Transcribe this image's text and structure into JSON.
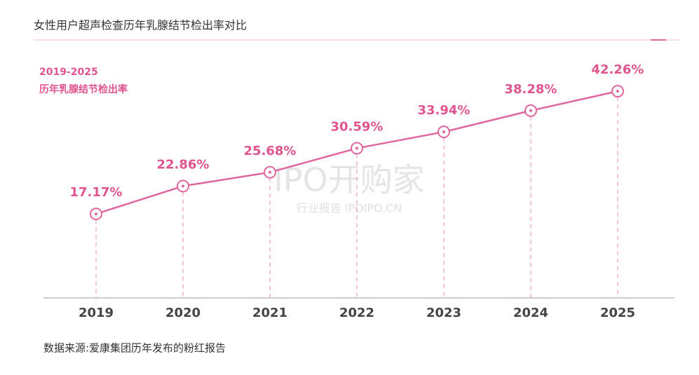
{
  "chart_data": {
    "type": "line",
    "title": "女性用户超声检查历年乳腺结节检出率对比",
    "annotation": [
      "2019-2025",
      "历年乳腺结节检出率"
    ],
    "source": "数据来源:爱康集团历年发布的粉红报告",
    "watermark": [
      "IPO开购家",
      "行业报告 IPOIPO.CN"
    ],
    "categories": [
      "2019",
      "2020",
      "2021",
      "2022",
      "2023",
      "2024",
      "2025"
    ],
    "values": [
      17.17,
      22.86,
      25.68,
      30.59,
      33.94,
      38.28,
      42.26
    ],
    "value_labels": [
      "17.17%",
      "22.86%",
      "25.68%",
      "30.59%",
      "33.94%",
      "38.28%",
      "42.26%"
    ],
    "color": "#e0669f",
    "ylim": [
      0,
      45
    ]
  }
}
